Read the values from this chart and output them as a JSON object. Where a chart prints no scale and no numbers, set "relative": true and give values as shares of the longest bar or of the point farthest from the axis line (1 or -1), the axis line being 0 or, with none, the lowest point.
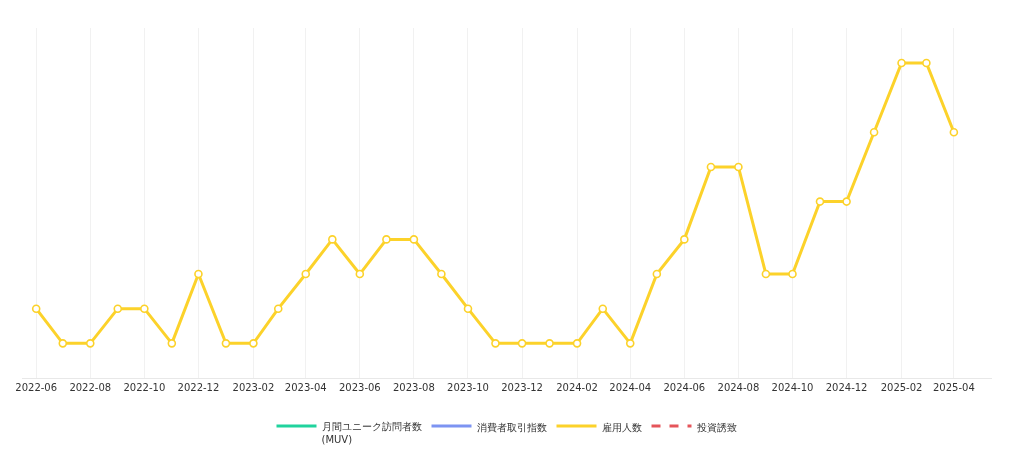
{
  "chart_data": {
    "type": "line",
    "relative": true,
    "x": [
      "2022-06",
      "2022-07",
      "2022-08",
      "2022-09",
      "2022-10",
      "2022-11",
      "2022-12",
      "2023-01",
      "2023-02",
      "2023-03",
      "2023-04",
      "2023-05",
      "2023-06",
      "2023-07",
      "2023-08",
      "2023-09",
      "2023-10",
      "2023-11",
      "2023-12",
      "2024-01",
      "2024-02",
      "2024-03",
      "2024-04",
      "2024-05",
      "2024-06",
      "2024-07",
      "2024-08",
      "2024-09",
      "2024-10",
      "2024-11",
      "2024-12",
      "2025-01",
      "2025-02",
      "2025-03",
      "2025-04"
    ],
    "xlim": [
      "2022-05-16",
      "2025-05-14"
    ],
    "xticks": [
      "2022-06",
      "2022-08",
      "2022-10",
      "2022-12",
      "2023-02",
      "2023-04",
      "2023-06",
      "2023-08",
      "2023-10",
      "2023-12",
      "2024-02",
      "2024-04",
      "2024-06",
      "2024-08",
      "2024-10",
      "2024-12",
      "2025-02",
      "2025-04"
    ],
    "grid": "x",
    "legend": "bottom",
    "marker": "circle",
    "line_style": "solid",
    "series": [
      {
        "name": "月間ユニーク訪問者数\n(MUV)",
        "color": "#20d39d",
        "values": [
          null,
          null,
          null,
          null,
          null,
          null,
          null,
          null,
          null,
          null,
          null,
          null,
          null,
          null,
          null,
          null,
          null,
          null,
          null,
          null,
          null,
          null,
          null,
          null,
          null,
          null,
          null,
          null,
          null,
          null,
          null,
          null,
          null,
          null,
          null
        ]
      },
      {
        "name": "消費者取引指数",
        "color": "#7d94f2",
        "values": [
          null,
          null,
          null,
          null,
          null,
          null,
          null,
          null,
          null,
          null,
          null,
          null,
          null,
          null,
          null,
          null,
          null,
          null,
          null,
          null,
          null,
          null,
          null,
          null,
          null,
          null,
          null,
          null,
          null,
          null,
          null,
          null,
          null,
          null,
          null
        ]
      },
      {
        "name": "雇用人数",
        "color": "#fcd22a",
        "values": [
          0.22,
          0.11,
          0.11,
          0.22,
          0.22,
          0.11,
          0.33,
          0.11,
          0.11,
          0.22,
          0.33,
          0.44,
          0.33,
          0.44,
          0.44,
          0.33,
          0.22,
          0.11,
          0.11,
          0.11,
          0.11,
          0.22,
          0.11,
          0.33,
          0.44,
          0.67,
          0.67,
          0.33,
          0.33,
          0.56,
          0.56,
          0.78,
          1,
          1,
          0.78
        ]
      },
      {
        "name": "投資誘致",
        "color": "#e5555a",
        "line_style": "dashed",
        "values": [
          null,
          null,
          null,
          null,
          null,
          null,
          null,
          null,
          null,
          null,
          null,
          null,
          null,
          null,
          null,
          null,
          null,
          null,
          null,
          null,
          null,
          null,
          null,
          null,
          null,
          null,
          null,
          null,
          null,
          null,
          null,
          null,
          null,
          null,
          null
        ]
      }
    ]
  }
}
